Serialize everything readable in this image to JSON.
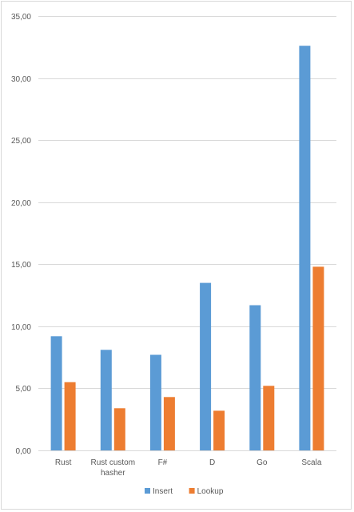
{
  "chart_data": {
    "type": "bar",
    "title": "",
    "xlabel": "",
    "ylabel": "",
    "categories": [
      "Rust",
      "Rust custom hasher",
      "F#",
      "D",
      "Go",
      "Scala"
    ],
    "category_lines": [
      [
        "Rust"
      ],
      [
        "Rust custom",
        "hasher"
      ],
      [
        "F#"
      ],
      [
        "D"
      ],
      [
        "Go"
      ],
      [
        "Scala"
      ]
    ],
    "series": [
      {
        "name": "Insert",
        "color": "#5b9bd5",
        "values": [
          9.2,
          8.1,
          7.7,
          13.5,
          11.7,
          32.6
        ]
      },
      {
        "name": "Lookup",
        "color": "#ed7d31",
        "values": [
          5.5,
          3.4,
          4.3,
          3.2,
          5.2,
          14.8
        ]
      }
    ],
    "ylim": [
      0,
      35
    ],
    "yticks": [
      0,
      5,
      10,
      15,
      20,
      25,
      30,
      35
    ],
    "ytick_labels": [
      "0,00",
      "5,00",
      "10,00",
      "15,00",
      "20,00",
      "25,00",
      "30,00",
      "35,00"
    ],
    "grid": true,
    "legend_position": "bottom"
  }
}
